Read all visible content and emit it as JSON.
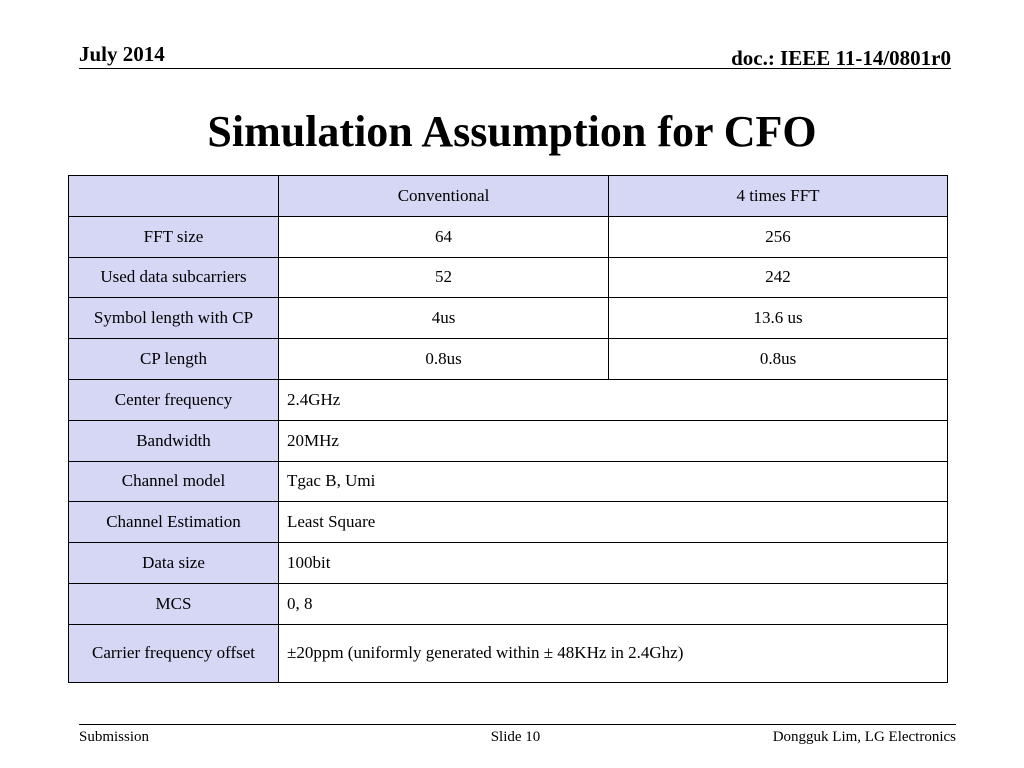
{
  "header": {
    "date": "July 2014",
    "doc": "doc.: IEEE 11-14/0801r0"
  },
  "title": "Simulation Assumption for CFO",
  "table": {
    "columns": [
      "",
      "Conventional",
      "4 times FFT"
    ],
    "rows": [
      {
        "label": "FFT size",
        "conventional": "64",
        "fft4": "256"
      },
      {
        "label": "Used data subcarriers",
        "conventional": "52",
        "fft4": "242"
      },
      {
        "label": "Symbol length with CP",
        "conventional": "4us",
        "fft4": "13.6 us"
      },
      {
        "label": "CP length",
        "conventional": "0.8us",
        "fft4": "0.8us"
      }
    ],
    "common_rows": [
      {
        "label": "Center frequency",
        "value": "2.4GHz"
      },
      {
        "label": "Bandwidth",
        "value": "20MHz"
      },
      {
        "label": "Channel model",
        "value": "Tgac B, Umi"
      },
      {
        "label": "Channel Estimation",
        "value": "Least Square"
      },
      {
        "label": "Data size",
        "value": "100bit"
      },
      {
        "label": "MCS",
        "value": "0, 8"
      },
      {
        "label": "Carrier frequency offset",
        "value": "±20ppm (uniformly generated within ± 48KHz in 2.4Ghz)"
      }
    ]
  },
  "footer": {
    "left": "Submission",
    "center": "Slide 10",
    "right": "Dongguk Lim, LG Electronics"
  }
}
